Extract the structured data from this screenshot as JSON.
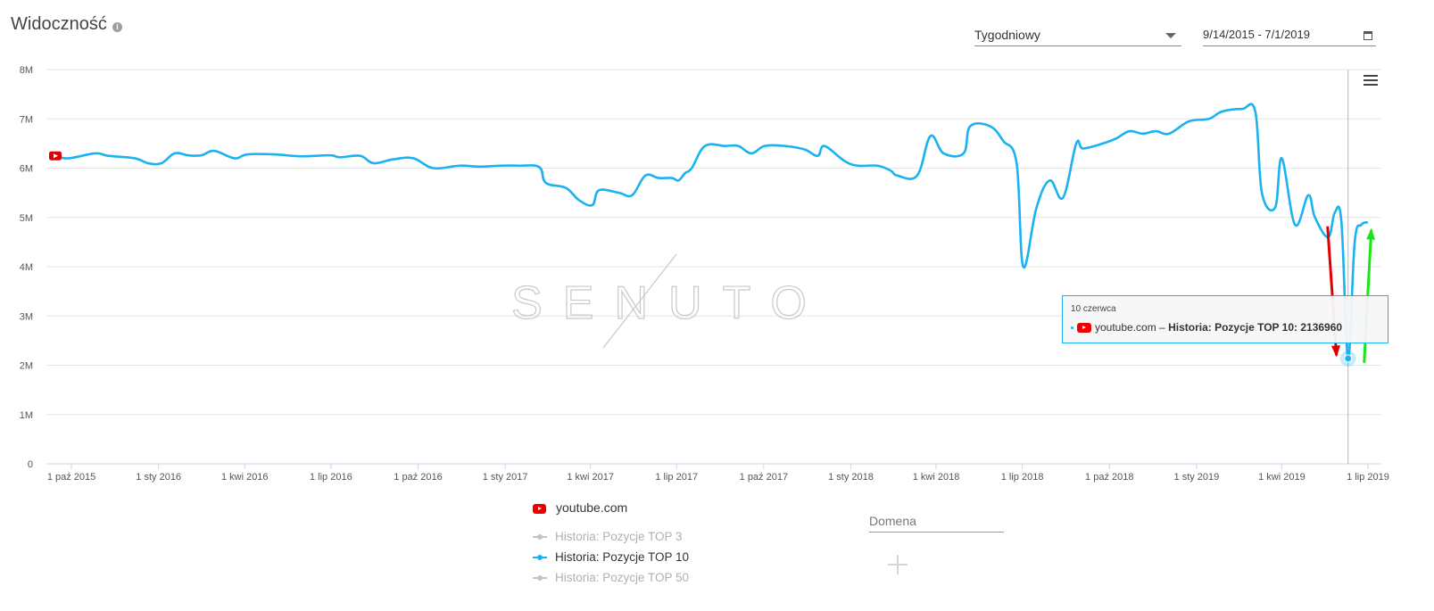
{
  "header": {
    "title": "Widoczność",
    "info_icon": "info-icon",
    "period_select": "Tygodniowy",
    "date_range": "9/14/2015 - 7/1/2019",
    "calendar_icon": "calendar-icon",
    "menu_icon": "hamburger-menu-icon"
  },
  "watermark": "SENUTO",
  "tooltip": {
    "date": "10 czerwca",
    "domain": "youtube.com",
    "series_label": "Historia: Pozycje TOP 10: 2136960"
  },
  "legend": {
    "domain": "youtube.com",
    "items": [
      {
        "label": "Historia: Pozycje TOP 3",
        "active": false
      },
      {
        "label": "Historia: Pozycje TOP 10",
        "active": true
      },
      {
        "label": "Historia: Pozycje TOP 50",
        "active": false
      }
    ]
  },
  "domain_field": {
    "placeholder": "Domena"
  },
  "colors": {
    "series": "#1ab2f0",
    "down_arrow": "#e00000",
    "up_arrow": "#19e619",
    "brand": "#e00000"
  },
  "chart_data": {
    "type": "line",
    "ylim": [
      0,
      8000000
    ],
    "y_ticks": [
      0,
      1000000,
      2000000,
      3000000,
      4000000,
      5000000,
      6000000,
      7000000,
      8000000
    ],
    "y_tick_labels": [
      "0",
      "1M",
      "2M",
      "3M",
      "4M",
      "5M",
      "6M",
      "7M",
      "8M"
    ],
    "x_range": [
      "2015-09-14",
      "2019-07-01"
    ],
    "x_ticks": [
      {
        "date": "2015-10-01",
        "label": "1 paź 2015"
      },
      {
        "date": "2016-01-01",
        "label": "1 sty 2016"
      },
      {
        "date": "2016-04-01",
        "label": "1 kwi 2016"
      },
      {
        "date": "2016-07-01",
        "label": "1 lip 2016"
      },
      {
        "date": "2016-10-01",
        "label": "1 paź 2016"
      },
      {
        "date": "2017-01-01",
        "label": "1 sty 2017"
      },
      {
        "date": "2017-04-01",
        "label": "1 kwi 2017"
      },
      {
        "date": "2017-07-01",
        "label": "1 lip 2017"
      },
      {
        "date": "2017-10-01",
        "label": "1 paź 2017"
      },
      {
        "date": "2018-01-01",
        "label": "1 sty 2018"
      },
      {
        "date": "2018-04-01",
        "label": "1 kwi 2018"
      },
      {
        "date": "2018-07-01",
        "label": "1 lip 2018"
      },
      {
        "date": "2018-10-01",
        "label": "1 paź 2018"
      },
      {
        "date": "2019-01-01",
        "label": "1 sty 2019"
      },
      {
        "date": "2019-04-01",
        "label": "1 kwi 2019"
      },
      {
        "date": "2019-07-01",
        "label": "1 lip 2019"
      }
    ],
    "grid": true,
    "legend_position": "bottom",
    "highlight": {
      "date": "2019-06-10",
      "value": 2136960
    },
    "series": [
      {
        "name": "Historia: Pozycje TOP 10",
        "color": "#1ab2f0",
        "points": [
          [
            "2015-09-14",
            6250000
          ],
          [
            "2015-09-28",
            6200000
          ],
          [
            "2015-10-26",
            6300000
          ],
          [
            "2015-11-09",
            6250000
          ],
          [
            "2015-12-07",
            6200000
          ],
          [
            "2015-12-21",
            6100000
          ],
          [
            "2016-01-04",
            6100000
          ],
          [
            "2016-01-18",
            6300000
          ],
          [
            "2016-02-01",
            6260000
          ],
          [
            "2016-02-15",
            6260000
          ],
          [
            "2016-02-29",
            6350000
          ],
          [
            "2016-03-21",
            6200000
          ],
          [
            "2016-04-04",
            6280000
          ],
          [
            "2016-05-02",
            6280000
          ],
          [
            "2016-05-30",
            6240000
          ],
          [
            "2016-06-27",
            6260000
          ],
          [
            "2016-07-04",
            6250000
          ],
          [
            "2016-07-11",
            6220000
          ],
          [
            "2016-08-01",
            6250000
          ],
          [
            "2016-08-15",
            6100000
          ],
          [
            "2016-09-05",
            6180000
          ],
          [
            "2016-09-26",
            6200000
          ],
          [
            "2016-10-17",
            6000000
          ],
          [
            "2016-11-14",
            6050000
          ],
          [
            "2016-12-05",
            6030000
          ],
          [
            "2016-12-26",
            6050000
          ],
          [
            "2017-01-16",
            6050000
          ],
          [
            "2017-02-06",
            6020000
          ],
          [
            "2017-02-13",
            5700000
          ],
          [
            "2017-03-06",
            5600000
          ],
          [
            "2017-03-20",
            5350000
          ],
          [
            "2017-04-03",
            5250000
          ],
          [
            "2017-04-10",
            5550000
          ],
          [
            "2017-05-01",
            5500000
          ],
          [
            "2017-05-15",
            5450000
          ],
          [
            "2017-05-29",
            5850000
          ],
          [
            "2017-06-12",
            5800000
          ],
          [
            "2017-06-26",
            5800000
          ],
          [
            "2017-07-03",
            5750000
          ],
          [
            "2017-07-10",
            5900000
          ],
          [
            "2017-07-17",
            6000000
          ],
          [
            "2017-07-31",
            6450000
          ],
          [
            "2017-08-21",
            6450000
          ],
          [
            "2017-09-04",
            6450000
          ],
          [
            "2017-09-18",
            6300000
          ],
          [
            "2017-10-02",
            6450000
          ],
          [
            "2017-10-23",
            6450000
          ],
          [
            "2017-11-13",
            6380000
          ],
          [
            "2017-11-27",
            6250000
          ],
          [
            "2017-12-04",
            6450000
          ],
          [
            "2017-12-25",
            6150000
          ],
          [
            "2018-01-08",
            6050000
          ],
          [
            "2018-01-29",
            6050000
          ],
          [
            "2018-02-12",
            5950000
          ],
          [
            "2018-02-19",
            5850000
          ],
          [
            "2018-03-12",
            5850000
          ],
          [
            "2018-03-26",
            6650000
          ],
          [
            "2018-04-09",
            6300000
          ],
          [
            "2018-04-30",
            6300000
          ],
          [
            "2018-05-07",
            6850000
          ],
          [
            "2018-05-28",
            6850000
          ],
          [
            "2018-06-11",
            6550000
          ],
          [
            "2018-06-25",
            6100000
          ],
          [
            "2018-07-02",
            4000000
          ],
          [
            "2018-07-16",
            5200000
          ],
          [
            "2018-07-30",
            5750000
          ],
          [
            "2018-08-13",
            5400000
          ],
          [
            "2018-08-27",
            6500000
          ],
          [
            "2018-09-03",
            6400000
          ],
          [
            "2018-09-24",
            6500000
          ],
          [
            "2018-10-08",
            6600000
          ],
          [
            "2018-10-22",
            6750000
          ],
          [
            "2018-11-05",
            6700000
          ],
          [
            "2018-11-19",
            6750000
          ],
          [
            "2018-12-03",
            6700000
          ],
          [
            "2018-12-24",
            6950000
          ],
          [
            "2019-01-14",
            7000000
          ],
          [
            "2019-01-28",
            7150000
          ],
          [
            "2019-02-18",
            7200000
          ],
          [
            "2019-03-04",
            7150000
          ],
          [
            "2019-03-11",
            5500000
          ],
          [
            "2019-03-25",
            5200000
          ],
          [
            "2019-04-01",
            6200000
          ],
          [
            "2019-04-15",
            4850000
          ],
          [
            "2019-04-29",
            5450000
          ],
          [
            "2019-05-06",
            5000000
          ],
          [
            "2019-05-20",
            4600000
          ],
          [
            "2019-05-27",
            5100000
          ],
          [
            "2019-06-03",
            4900000
          ],
          [
            "2019-06-10",
            2136960
          ],
          [
            "2019-06-17",
            4500000
          ],
          [
            "2019-06-24",
            4850000
          ],
          [
            "2019-07-01",
            4900000
          ]
        ]
      }
    ]
  }
}
